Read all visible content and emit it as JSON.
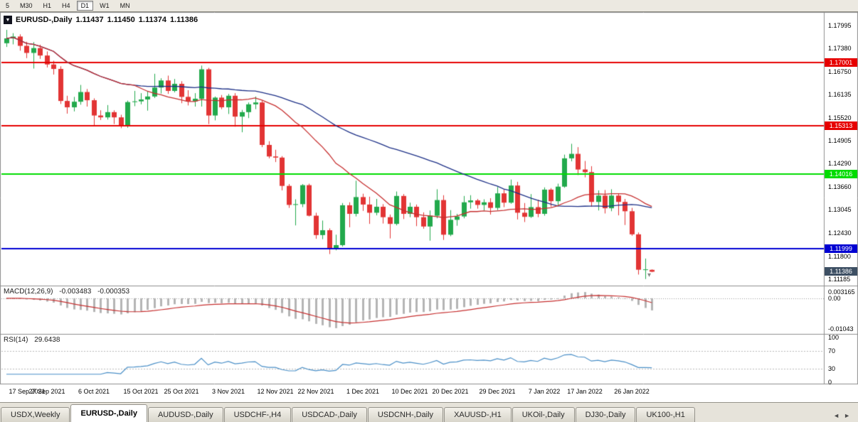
{
  "toolbar": {
    "timeframes": [
      {
        "label": "5",
        "active": false
      },
      {
        "label": "M30",
        "active": false
      },
      {
        "label": "H1",
        "active": false
      },
      {
        "label": "H4",
        "active": false
      },
      {
        "label": "D1",
        "active": true
      },
      {
        "label": "W1",
        "active": false
      },
      {
        "label": "MN",
        "active": false
      }
    ]
  },
  "icons": {
    "symbol_marker": "▼",
    "price_down_marker": "▾",
    "tab_scroll_left": "◄",
    "tab_scroll_right": "►"
  },
  "chart": {
    "title": {
      "symbol": "EURUSD-,Daily",
      "open": "1.11437",
      "high": "1.11450",
      "low": "1.11374",
      "close": "1.11386"
    },
    "price_axis": {
      "labels": [
        "1.17995",
        "1.17380",
        "1.16750",
        "1.16135",
        "1.15520",
        "1.14905",
        "1.14290",
        "1.13660",
        "1.13045",
        "1.12430",
        "1.11800",
        "1.11185"
      ]
    },
    "levels": [
      {
        "value": 1.17001,
        "label": "1.17001",
        "color_key": "level_red",
        "type": "resistance"
      },
      {
        "value": 1.15313,
        "label": "1.15313",
        "color_key": "level_red",
        "type": "resistance"
      },
      {
        "value": 1.14016,
        "label": "1.14016",
        "color_key": "level_green",
        "type": "support"
      },
      {
        "value": 1.11999,
        "label": "1.11999",
        "color_key": "level_blue",
        "type": "support"
      }
    ],
    "current_price": {
      "value": 1.11386,
      "label": "1.11386"
    },
    "date_axis": {
      "labels": [
        {
          "text": "17 Sep 2021",
          "i": 0
        },
        {
          "text": "27 Sep 2021",
          "i": 6
        },
        {
          "text": "6 Oct 2021",
          "i": 13
        },
        {
          "text": "15 Oct 2021",
          "i": 20
        },
        {
          "text": "25 Oct 2021",
          "i": 26
        },
        {
          "text": "3 Nov 2021",
          "i": 33
        },
        {
          "text": "12 Nov 2021",
          "i": 40
        },
        {
          "text": "22 Nov 2021",
          "i": 46
        },
        {
          "text": "1 Dec 2021",
          "i": 53
        },
        {
          "text": "10 Dec 2021",
          "i": 60
        },
        {
          "text": "20 Dec 2021",
          "i": 66
        },
        {
          "text": "29 Dec 2021",
          "i": 73
        },
        {
          "text": "7 Jan 2022",
          "i": 80
        },
        {
          "text": "17 Jan 2022",
          "i": 86
        },
        {
          "text": "26 Jan 2022",
          "i": 93
        }
      ]
    }
  },
  "indicators": {
    "macd": {
      "label": "MACD(12,26,9)",
      "value_main": "-0.003483",
      "value_signal": "-0.000353",
      "axis_labels": [
        "0.003165",
        "0.00",
        "-0.01043"
      ],
      "params": {
        "fast": 12,
        "slow": 26,
        "signal": 9
      }
    },
    "rsi": {
      "label": "RSI(14)",
      "value": "29.6438",
      "axis_labels": [
        "100",
        "70",
        "30",
        "0"
      ],
      "levels": [
        70,
        30
      ],
      "period": 14
    }
  },
  "tabs": [
    {
      "label": "USDX,Weekly",
      "active": false
    },
    {
      "label": "EURUSD-,Daily",
      "active": true
    },
    {
      "label": "AUDUSD-,Daily",
      "active": false
    },
    {
      "label": "USDCHF-,H4",
      "active": false
    },
    {
      "label": "USDCAD-,Daily",
      "active": false
    },
    {
      "label": "USDCNH-,Daily",
      "active": false
    },
    {
      "label": "XAUUSD-,H1",
      "active": false
    },
    {
      "label": "UKOil-,Daily",
      "active": false
    },
    {
      "label": "DJ30-,Daily",
      "active": false
    },
    {
      "label": "UK100-,H1",
      "active": false
    }
  ],
  "colors": {
    "bull": "#22a94c",
    "bear": "#e23434",
    "ma_fast": "#c62f2f",
    "ma_slow": "#1c2f86",
    "level_red": "#e60000",
    "level_green": "#00dc00",
    "level_blue": "#0000d2",
    "current_price_bg": "#3d4f63",
    "macd_hist": "#b4b4b4",
    "macd_signal": "#c62f2f",
    "rsi_line": "#4a8fc7"
  },
  "chart_data": {
    "type": "candlestick",
    "title": "EURUSD-,Daily",
    "y_range": [
      1.1109,
      1.1828
    ],
    "x_range": [
      "17 Sep 2021",
      "31 Jan 2022"
    ],
    "moving_averages": [
      {
        "name": "fast-ma",
        "type": "sma",
        "period": 20,
        "color_key": "ma_fast"
      },
      {
        "name": "slow-ma",
        "type": "sma",
        "period": 45,
        "color_key": "ma_slow"
      }
    ],
    "indicator_params": {
      "macd": {
        "fast": 12,
        "slow": 26,
        "signal": 9
      },
      "rsi": {
        "period": 14
      }
    },
    "ohlc": [
      [
        1.1752,
        1.1788,
        1.1742,
        1.1765
      ],
      [
        1.1765,
        1.1779,
        1.1749,
        1.177
      ],
      [
        1.177,
        1.1776,
        1.1732,
        1.1745
      ],
      [
        1.1745,
        1.1756,
        1.1712,
        1.1726
      ],
      [
        1.1726,
        1.1755,
        1.1684,
        1.1739
      ],
      [
        1.1739,
        1.1748,
        1.171,
        1.1719
      ],
      [
        1.1719,
        1.173,
        1.1687,
        1.1695
      ],
      [
        1.1695,
        1.1705,
        1.1668,
        1.1683
      ],
      [
        1.1683,
        1.169,
        1.1589,
        1.1597
      ],
      [
        1.1597,
        1.1611,
        1.1563,
        1.158
      ],
      [
        1.158,
        1.1608,
        1.1569,
        1.1595
      ],
      [
        1.1595,
        1.164,
        1.1587,
        1.1621
      ],
      [
        1.1621,
        1.1629,
        1.1582,
        1.1599
      ],
      [
        1.1599,
        1.1604,
        1.1529,
        1.1558
      ],
      [
        1.1558,
        1.1572,
        1.1546,
        1.1553
      ],
      [
        1.1553,
        1.1586,
        1.1547,
        1.1567
      ],
      [
        1.1567,
        1.1572,
        1.1535,
        1.1553
      ],
      [
        1.1553,
        1.156,
        1.1524,
        1.153
      ],
      [
        1.153,
        1.1598,
        1.1525,
        1.1594
      ],
      [
        1.1594,
        1.1624,
        1.1583,
        1.1596
      ],
      [
        1.1596,
        1.1618,
        1.1588,
        1.1601
      ],
      [
        1.1601,
        1.1622,
        1.1571,
        1.1609
      ],
      [
        1.1609,
        1.167,
        1.1605,
        1.1633
      ],
      [
        1.1633,
        1.1658,
        1.1617,
        1.1652
      ],
      [
        1.1652,
        1.1665,
        1.1616,
        1.1624
      ],
      [
        1.1624,
        1.1656,
        1.162,
        1.1643
      ],
      [
        1.1643,
        1.165,
        1.1591,
        1.1608
      ],
      [
        1.1608,
        1.1626,
        1.1585,
        1.1596
      ],
      [
        1.1596,
        1.1618,
        1.1582,
        1.1603
      ],
      [
        1.1603,
        1.1692,
        1.1582,
        1.1682
      ],
      [
        1.1682,
        1.1686,
        1.1535,
        1.1558
      ],
      [
        1.1558,
        1.1609,
        1.1545,
        1.1606
      ],
      [
        1.1606,
        1.1613,
        1.1575,
        1.158
      ],
      [
        1.158,
        1.1616,
        1.1562,
        1.1611
      ],
      [
        1.1611,
        1.1618,
        1.1528,
        1.1555
      ],
      [
        1.1555,
        1.1573,
        1.1513,
        1.1567
      ],
      [
        1.1567,
        1.1593,
        1.1551,
        1.1588
      ],
      [
        1.1588,
        1.1609,
        1.1575,
        1.1593
      ],
      [
        1.1593,
        1.1598,
        1.1473,
        1.1479
      ],
      [
        1.1479,
        1.1489,
        1.1443,
        1.1448
      ],
      [
        1.1448,
        1.1466,
        1.1433,
        1.1445
      ],
      [
        1.1445,
        1.1449,
        1.1357,
        1.1369
      ],
      [
        1.1369,
        1.1374,
        1.131,
        1.1318
      ],
      [
        1.1318,
        1.1333,
        1.1263,
        1.132
      ],
      [
        1.132,
        1.1374,
        1.1312,
        1.1371
      ],
      [
        1.1371,
        1.1375,
        1.1287,
        1.1289
      ],
      [
        1.1289,
        1.1297,
        1.1227,
        1.1237
      ],
      [
        1.1237,
        1.1276,
        1.1226,
        1.125
      ],
      [
        1.125,
        1.1255,
        1.1186,
        1.12
      ],
      [
        1.12,
        1.1238,
        1.1196,
        1.121
      ],
      [
        1.121,
        1.1323,
        1.1206,
        1.1317
      ],
      [
        1.1317,
        1.1325,
        1.1258,
        1.1294
      ],
      [
        1.1294,
        1.1383,
        1.1287,
        1.1339
      ],
      [
        1.1339,
        1.1348,
        1.1302,
        1.1319
      ],
      [
        1.1319,
        1.134,
        1.1267,
        1.1297
      ],
      [
        1.1297,
        1.1334,
        1.129,
        1.1313
      ],
      [
        1.1313,
        1.132,
        1.1268,
        1.1285
      ],
      [
        1.1285,
        1.1292,
        1.1228,
        1.1267
      ],
      [
        1.1267,
        1.1354,
        1.1263,
        1.1342
      ],
      [
        1.1342,
        1.1347,
        1.128,
        1.1294
      ],
      [
        1.1294,
        1.1324,
        1.1285,
        1.1313
      ],
      [
        1.1313,
        1.1319,
        1.1261,
        1.1285
      ],
      [
        1.1285,
        1.1298,
        1.1254,
        1.126
      ],
      [
        1.126,
        1.1303,
        1.1222,
        1.1289
      ],
      [
        1.1289,
        1.136,
        1.1282,
        1.1331
      ],
      [
        1.1331,
        1.1344,
        1.1224,
        1.1238
      ],
      [
        1.1238,
        1.1304,
        1.1234,
        1.1278
      ],
      [
        1.1278,
        1.1294,
        1.1262,
        1.1287
      ],
      [
        1.1287,
        1.1342,
        1.1282,
        1.1325
      ],
      [
        1.1325,
        1.1344,
        1.1308,
        1.133
      ],
      [
        1.133,
        1.1334,
        1.1308,
        1.1318
      ],
      [
        1.1318,
        1.1333,
        1.1303,
        1.1325
      ],
      [
        1.1325,
        1.1336,
        1.1292,
        1.131
      ],
      [
        1.131,
        1.1366,
        1.1304,
        1.1349
      ],
      [
        1.1349,
        1.136,
        1.1312,
        1.1324
      ],
      [
        1.1324,
        1.1386,
        1.1321,
        1.137
      ],
      [
        1.137,
        1.138,
        1.1279,
        1.1297
      ],
      [
        1.1297,
        1.1323,
        1.1272,
        1.1286
      ],
      [
        1.1286,
        1.1347,
        1.1283,
        1.1312
      ],
      [
        1.1312,
        1.1332,
        1.1285,
        1.1294
      ],
      [
        1.1294,
        1.1365,
        1.1289,
        1.1359
      ],
      [
        1.1359,
        1.1363,
        1.1313,
        1.1328
      ],
      [
        1.1328,
        1.1375,
        1.1314,
        1.1367
      ],
      [
        1.1367,
        1.1453,
        1.1364,
        1.1443
      ],
      [
        1.1443,
        1.1482,
        1.1435,
        1.1455
      ],
      [
        1.1455,
        1.1473,
        1.1398,
        1.1413
      ],
      [
        1.1413,
        1.1436,
        1.1392,
        1.1406
      ],
      [
        1.1406,
        1.1422,
        1.1313,
        1.1326
      ],
      [
        1.1326,
        1.1357,
        1.1303,
        1.1343
      ],
      [
        1.1343,
        1.1358,
        1.1295,
        1.1309
      ],
      [
        1.1309,
        1.136,
        1.1301,
        1.1343
      ],
      [
        1.1343,
        1.1349,
        1.129,
        1.1326
      ],
      [
        1.1326,
        1.1334,
        1.1264,
        1.1301
      ],
      [
        1.1301,
        1.131,
        1.1235,
        1.1239
      ],
      [
        1.1239,
        1.1244,
        1.1131,
        1.1144
      ],
      [
        1.1144,
        1.1174,
        1.1119,
        1.1145
      ],
      [
        1.11437,
        1.1145,
        1.11374,
        1.11386
      ]
    ]
  }
}
